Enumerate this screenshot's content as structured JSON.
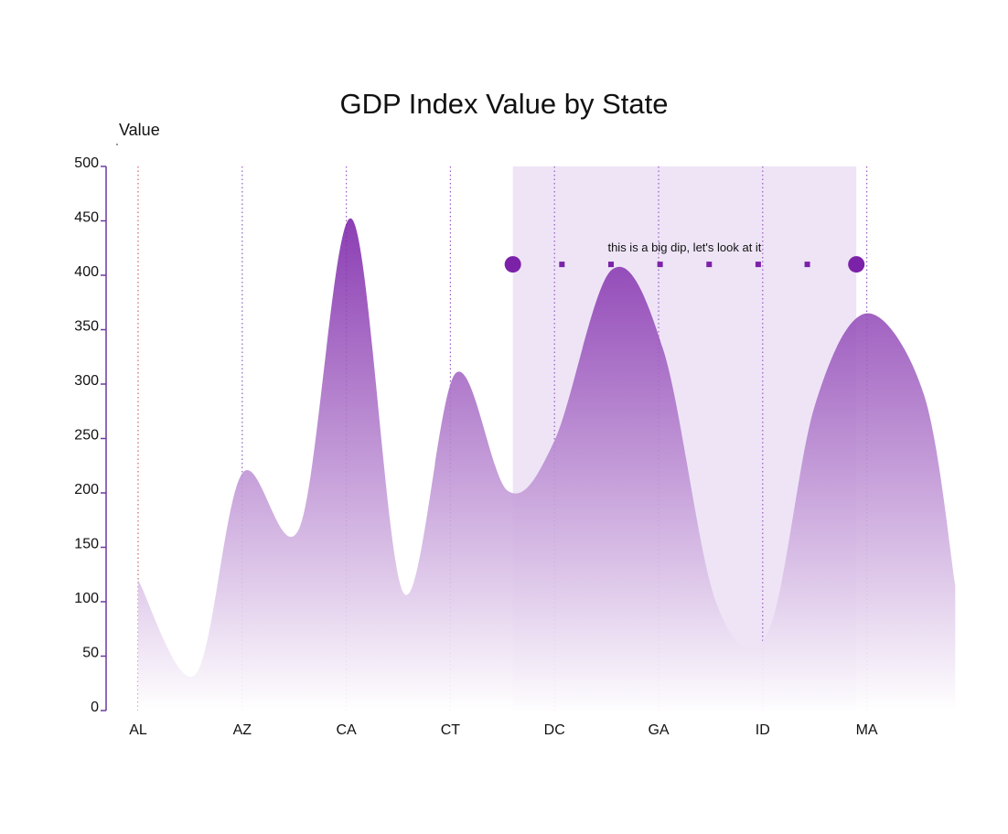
{
  "chart_data": {
    "type": "area",
    "title": "GDP Index Value by State",
    "ylabel": "Value",
    "xlabel": "",
    "ylim": [
      0,
      500
    ],
    "yticks": [
      0,
      50,
      100,
      150,
      200,
      250,
      300,
      350,
      400,
      450,
      500
    ],
    "categories": [
      "AL",
      "AZ",
      "CA",
      "CT",
      "DC",
      "GA",
      "ID",
      "MA"
    ],
    "points": [
      {
        "x": 0,
        "y": 120
      },
      {
        "x": 0.55,
        "y": 33
      },
      {
        "x": 1.0,
        "y": 218
      },
      {
        "x": 1.55,
        "y": 168
      },
      {
        "x": 2.05,
        "y": 452
      },
      {
        "x": 2.55,
        "y": 108
      },
      {
        "x": 3.05,
        "y": 310
      },
      {
        "x": 3.55,
        "y": 202
      },
      {
        "x": 4.0,
        "y": 248
      },
      {
        "x": 4.55,
        "y": 405
      },
      {
        "x": 5.05,
        "y": 330
      },
      {
        "x": 5.55,
        "y": 100
      },
      {
        "x": 6.05,
        "y": 72
      },
      {
        "x": 6.5,
        "y": 280
      },
      {
        "x": 7.0,
        "y": 365
      },
      {
        "x": 7.55,
        "y": 290
      },
      {
        "x": 7.85,
        "y": 115
      }
    ],
    "highlight_range": [
      3.6,
      6.9
    ],
    "annotation": {
      "text": "this is a big dip, let's look at it",
      "y": 410,
      "x_start": 3.6,
      "x_end": 6.9
    },
    "grid": "vertical-dotted",
    "legend": "none",
    "colors": {
      "area_top": "#7b22a8",
      "area_bottom": "#ffffff",
      "highlight": "#ebdff4",
      "axis": "#6a3aa3",
      "gridline_edge": "#cc6666",
      "gridline": "#9b59c4",
      "marker": "#7b22a8"
    }
  }
}
